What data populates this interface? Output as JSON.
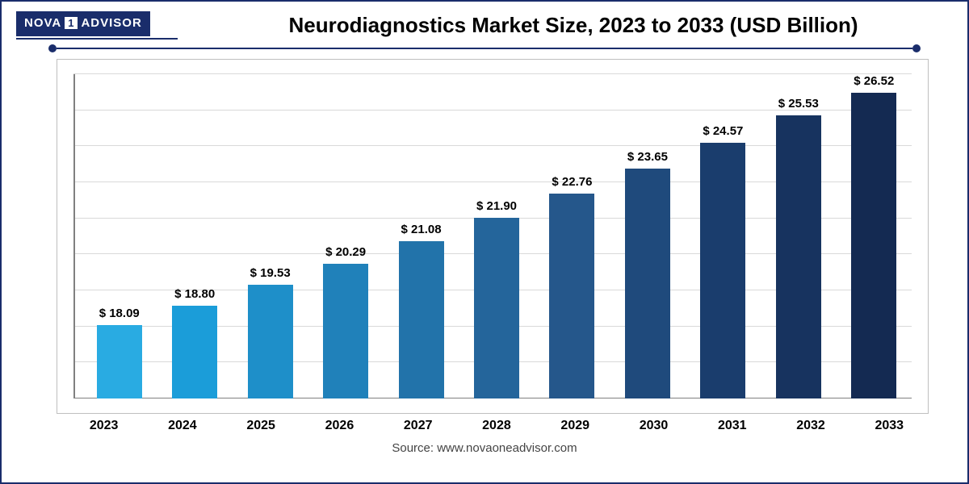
{
  "logo": {
    "left": "NOVA",
    "mid": "1",
    "right": "ADVISOR"
  },
  "title": "Neurodiagnostics Market Size, 2023 to 2033 (USD Billion)",
  "source": "Source: www.novaoneadvisor.com",
  "chart": {
    "type": "bar",
    "ylim": [
      15.5,
      27.0
    ],
    "gridline_count": 9,
    "grid_color": "#d9d9d9",
    "axis_color": "#808080",
    "background_color": "#ffffff",
    "label_fontsize": 15,
    "xlabel_fontsize": 16,
    "bar_width_pct": 60,
    "categories": [
      "2023",
      "2024",
      "2025",
      "2026",
      "2027",
      "2028",
      "2029",
      "2030",
      "2031",
      "2032",
      "2033"
    ],
    "values": [
      18.09,
      18.8,
      19.53,
      20.29,
      21.08,
      21.9,
      22.76,
      23.65,
      24.57,
      25.53,
      26.52
    ],
    "value_labels": [
      "$ 18.09",
      "$ 18.80",
      "$ 19.53",
      "$ 20.29",
      "$ 21.08",
      "$ 21.90",
      "$ 22.76",
      "$ 23.65",
      "$ 24.57",
      "$ 25.53",
      "$ 26.52"
    ],
    "bar_colors": [
      "#29abe2",
      "#1b9dd9",
      "#1e8fc9",
      "#2081ba",
      "#2273aa",
      "#24659b",
      "#25578b",
      "#1f4a7c",
      "#1a3d6d",
      "#17335f",
      "#142a52"
    ]
  },
  "colors": {
    "frame": "#1a2d6b",
    "logo_bg": "#1a2d6b",
    "logo_fg": "#ffffff",
    "title": "#000000",
    "source": "#444444"
  }
}
